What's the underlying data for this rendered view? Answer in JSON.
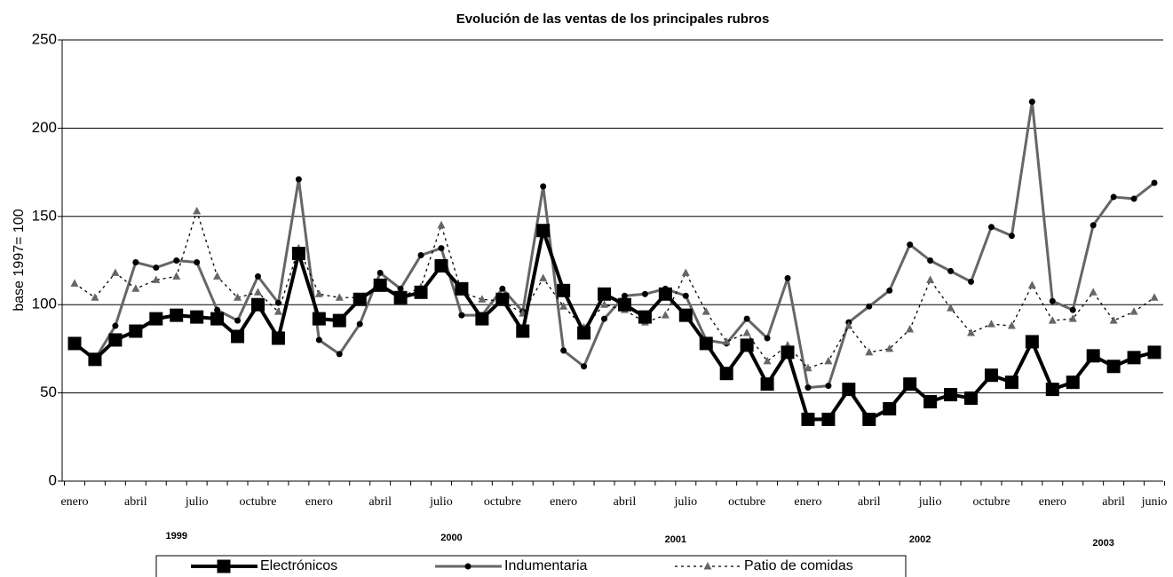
{
  "chart_data": {
    "type": "line",
    "title": "Evolución de las ventas de los principales rubros",
    "y_label": "base 1997= 100",
    "categories": [
      "enero",
      null,
      null,
      "abril",
      null,
      null,
      "julio",
      null,
      null,
      "octubre",
      null,
      null,
      "enero",
      null,
      null,
      "abril",
      null,
      null,
      "julio",
      null,
      null,
      "octubre",
      null,
      null,
      "enero",
      null,
      null,
      "abril",
      null,
      null,
      "julio",
      null,
      null,
      "octubre",
      null,
      null,
      "enero",
      null,
      null,
      "abril",
      null,
      null,
      "julio",
      null,
      null,
      "octubre",
      null,
      null,
      "enero",
      null,
      null,
      "abril",
      null,
      "junio"
    ],
    "year_labels": [
      "1999",
      "2000",
      "2001",
      "2002",
      "2003"
    ],
    "ylim": [
      0,
      250
    ],
    "yticks": [
      0,
      50,
      100,
      150,
      200,
      250
    ],
    "grid": true,
    "legend": "bottom",
    "series": [
      {
        "name": "Electrónicos",
        "color": "#000000",
        "marker_color": "#000000",
        "marker": "square",
        "line_style": "solid",
        "values": [
          78,
          69,
          80,
          85,
          92,
          94,
          93,
          92,
          82,
          100,
          81,
          129,
          92,
          91,
          103,
          111,
          104,
          107,
          122,
          109,
          92,
          103,
          85,
          142,
          108,
          84,
          106,
          100,
          93,
          106,
          94,
          78,
          61,
          77,
          55,
          73,
          35,
          35,
          52,
          35,
          41,
          55,
          45,
          49,
          47,
          60,
          56,
          79,
          52,
          56,
          71,
          65,
          70,
          73
        ]
      },
      {
        "name": "Indumentaria",
        "color": "#666666",
        "marker_color": "#000000",
        "marker": "circle",
        "line_style": "solid",
        "values": [
          78,
          69,
          88,
          124,
          121,
          125,
          124,
          97,
          91,
          116,
          101,
          171,
          80,
          72,
          89,
          118,
          109,
          128,
          132,
          94,
          94,
          109,
          96,
          167,
          74,
          65,
          92,
          105,
          106,
          109,
          105,
          80,
          78,
          92,
          81,
          115,
          53,
          54,
          90,
          99,
          108,
          134,
          125,
          119,
          113,
          144,
          139,
          215,
          102,
          97,
          145,
          161,
          160,
          169
        ]
      },
      {
        "name": "Patio de comidas",
        "color": "#000000",
        "marker_color": "#666666",
        "marker": "triangle",
        "line_style": "dotted",
        "values": [
          112,
          104,
          118,
          109,
          114,
          116,
          153,
          116,
          104,
          107,
          96,
          132,
          106,
          104,
          104,
          110,
          104,
          110,
          145,
          107,
          103,
          102,
          95,
          115,
          99,
          87,
          100,
          97,
          90,
          94,
          118,
          96,
          79,
          84,
          68,
          77,
          64,
          68,
          88,
          73,
          75,
          86,
          114,
          98,
          84,
          89,
          88,
          111,
          91,
          92,
          107,
          91,
          96,
          104
        ]
      }
    ]
  }
}
